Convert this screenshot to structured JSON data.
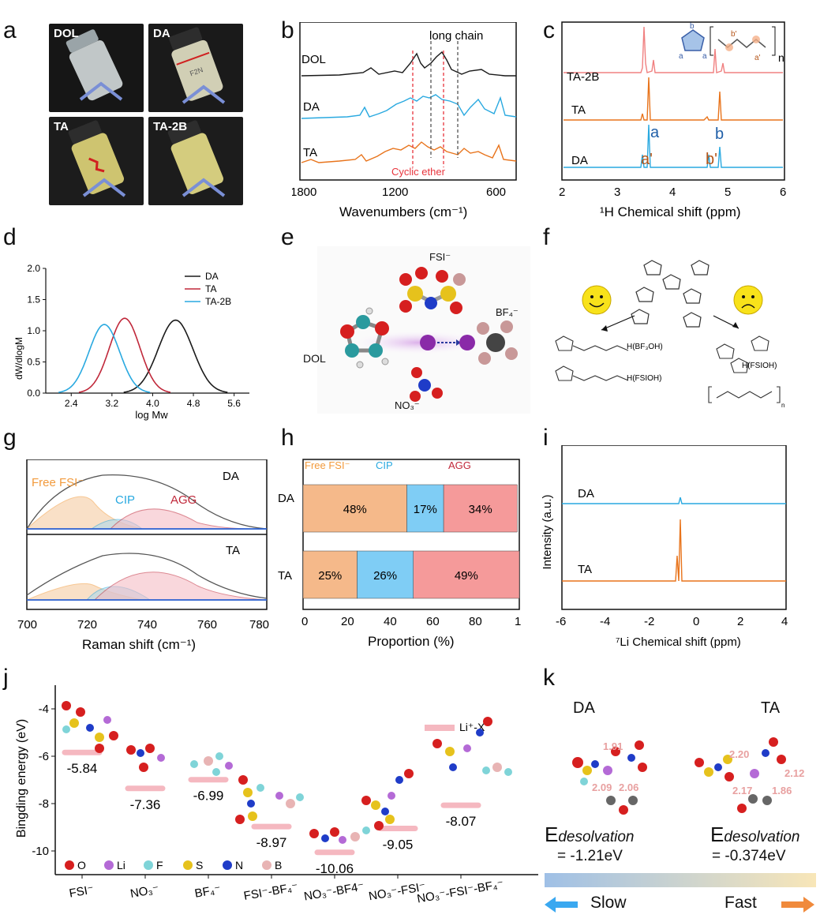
{
  "panel_letters": {
    "a": "a",
    "b": "b",
    "c": "c",
    "d": "d",
    "e": "e",
    "f": "f",
    "g": "g",
    "h": "h",
    "i": "i",
    "j": "j",
    "k": "k"
  },
  "panel_a": {
    "photos": [
      {
        "label": "DOL",
        "liquid": "#dfe6e8",
        "cap": "#9aa4a8"
      },
      {
        "label": "DA",
        "liquid": "#e6e3c7",
        "cap": "#2d2d2d"
      },
      {
        "label": "TA",
        "liquid": "#e2d77a",
        "cap": "#2d2d2d"
      },
      {
        "label": "TA-2B",
        "liquid": "#e9e08a",
        "cap": "#2d2d2d"
      }
    ]
  },
  "panel_b": {
    "xlabel": "Wavenumbers (cm⁻¹)",
    "ticks": [
      "1800",
      "1200",
      "600"
    ],
    "curve_labels": [
      "DOL",
      "DA",
      "TA"
    ],
    "annotation_top": "long chain",
    "annotation_bottom": "Cyclic ether",
    "colors": {
      "DOL": "#1a1a1a",
      "DA": "#29a9e0",
      "TA": "#e8741c",
      "cyclic": "#e8343c",
      "chain": "#555555"
    }
  },
  "panel_c": {
    "xlabel": "¹H Chemical shift (ppm)",
    "ticks": [
      "2",
      "3",
      "4",
      "5",
      "6"
    ],
    "curve_labels": [
      "TA-2B",
      "TA",
      "DA"
    ],
    "peak_labels": {
      "a": "a",
      "b": "b",
      "a_prime": "a'",
      "b_prime": "b'"
    },
    "inset_labels": {
      "b": "b",
      "a_left": "a",
      "a_right": "a",
      "n": "n",
      "b_prime": "b'",
      "a_prime": "a'"
    },
    "colors": {
      "TA-2B": "#f08080",
      "TA": "#e8741c",
      "DA": "#29a9e0",
      "a": "#1f5fa8",
      "a_prime": "#b5561a"
    }
  },
  "chart_data": {
    "type": "line",
    "title": "",
    "xlabel": "log Mw",
    "ylabel": "dW/dlogM",
    "xlim": [
      1.9,
      5.9
    ],
    "ylim": [
      0,
      2.0
    ],
    "xticks": [
      "2.4",
      "3.2",
      "4.0",
      "4.8",
      "5.6"
    ],
    "yticks": [
      "0.0",
      "0.5",
      "1.0",
      "1.5",
      "2.0"
    ],
    "legend_position": "top-right",
    "series": [
      {
        "name": "DA",
        "color": "#1a1a1a",
        "peak_x": 4.45,
        "peak_y": 1.17,
        "sigma": 0.34
      },
      {
        "name": "TA",
        "color": "#c0283a",
        "peak_x": 3.45,
        "peak_y": 1.2,
        "sigma": 0.3
      },
      {
        "name": "TA-2B",
        "color": "#29a9e0",
        "peak_x": 3.05,
        "peak_y": 1.1,
        "sigma": 0.3
      }
    ]
  },
  "panel_e": {
    "labels": {
      "fsi": "FSI⁻",
      "bf4": "BF₄⁻",
      "dol": "DOL",
      "no3": "NO₃⁻"
    }
  },
  "panel_f": {
    "labels": {
      "left_top": "H(BF₃OH)",
      "left_bottom": "H(FSIOH)",
      "right": "H(FSIOH)",
      "n": "n"
    }
  },
  "panel_g": {
    "xlabel": "Raman shift (cm⁻¹)",
    "ticks": [
      "700",
      "720",
      "740",
      "760",
      "780"
    ],
    "labels": {
      "free": "Free FSI⁻",
      "cip": "CIP",
      "agg": "AGG",
      "da": "DA",
      "ta": "TA"
    },
    "colors": {
      "free": "#f29a3c",
      "cip": "#29a9e0",
      "agg": "#c0283a"
    }
  },
  "panel_h": {
    "xlabel": "Proportion (%)",
    "ticks": [
      "0",
      "20",
      "40",
      "60",
      "80",
      "1"
    ],
    "legend": {
      "free": "Free FSI⁻",
      "cip": "CIP",
      "agg": "AGG"
    },
    "rows": [
      {
        "label": "DA",
        "free": 48,
        "cip": 17,
        "agg": 34,
        "free_text": "48%",
        "cip_text": "17%",
        "agg_text": "34%"
      },
      {
        "label": "TA",
        "free": 25,
        "cip": 26,
        "agg": 49,
        "free_text": "25%",
        "cip_text": "26%",
        "agg_text": "49%"
      }
    ],
    "colors": {
      "free": "#f5b98a",
      "cip": "#7fcdf5",
      "agg": "#f59a9a"
    }
  },
  "panel_i": {
    "xlabel": "⁷Li Chemical shift (ppm)",
    "ylabel": "Intensity (a.u.)",
    "ticks": [
      "-6",
      "-4",
      "-2",
      "0",
      "2",
      "4"
    ],
    "curve_labels": [
      "DA",
      "TA"
    ],
    "colors": {
      "DA": "#29a9e0",
      "TA": "#e8741c"
    }
  },
  "panel_j": {
    "ylabel": "Bingding energy (eV)",
    "yticks": [
      "-4",
      "-6",
      "-8",
      "-10"
    ],
    "legend": "Li⁺-X⁻",
    "categories": [
      "FSI⁻",
      "NO₃⁻",
      "BF₄⁻",
      "FSI⁻-BF₄⁻",
      "NO₃⁻-BF4⁻",
      "NO₃⁻-FSI⁻",
      "NO₃⁻-FSI⁻-BF₄⁻"
    ],
    "values": [
      -5.84,
      -7.36,
      -6.99,
      -8.97,
      -10.06,
      -9.05,
      -8.07
    ],
    "value_labels": [
      "-5.84",
      "-7.36",
      "-6.99",
      "-8.97",
      "-10.06",
      "-9.05",
      "-8.07"
    ],
    "atom_legend": [
      {
        "label": "O",
        "color": "#d61f1f"
      },
      {
        "label": "Li",
        "color": "#b46ad6"
      },
      {
        "label": "F",
        "color": "#7fd4d8"
      },
      {
        "label": "S",
        "color": "#e6c21c"
      },
      {
        "label": "N",
        "color": "#1f3cc8"
      },
      {
        "label": "B",
        "color": "#e8b4b4"
      }
    ]
  },
  "panel_k": {
    "da": {
      "title": "DA",
      "e_label": "E",
      "e_sub": "desolvation",
      "e_value": "= -1.21eV",
      "d1": "1.91",
      "d2": "2.09",
      "d3": "2.06"
    },
    "ta": {
      "title": "TA",
      "e_label": "E",
      "e_sub": "desolvation",
      "e_value": "= -0.374eV",
      "d1": "2.20",
      "d2": "2.12",
      "d3": "2.17",
      "d4": "1.86"
    },
    "slow": "Slow",
    "fast": "Fast"
  }
}
